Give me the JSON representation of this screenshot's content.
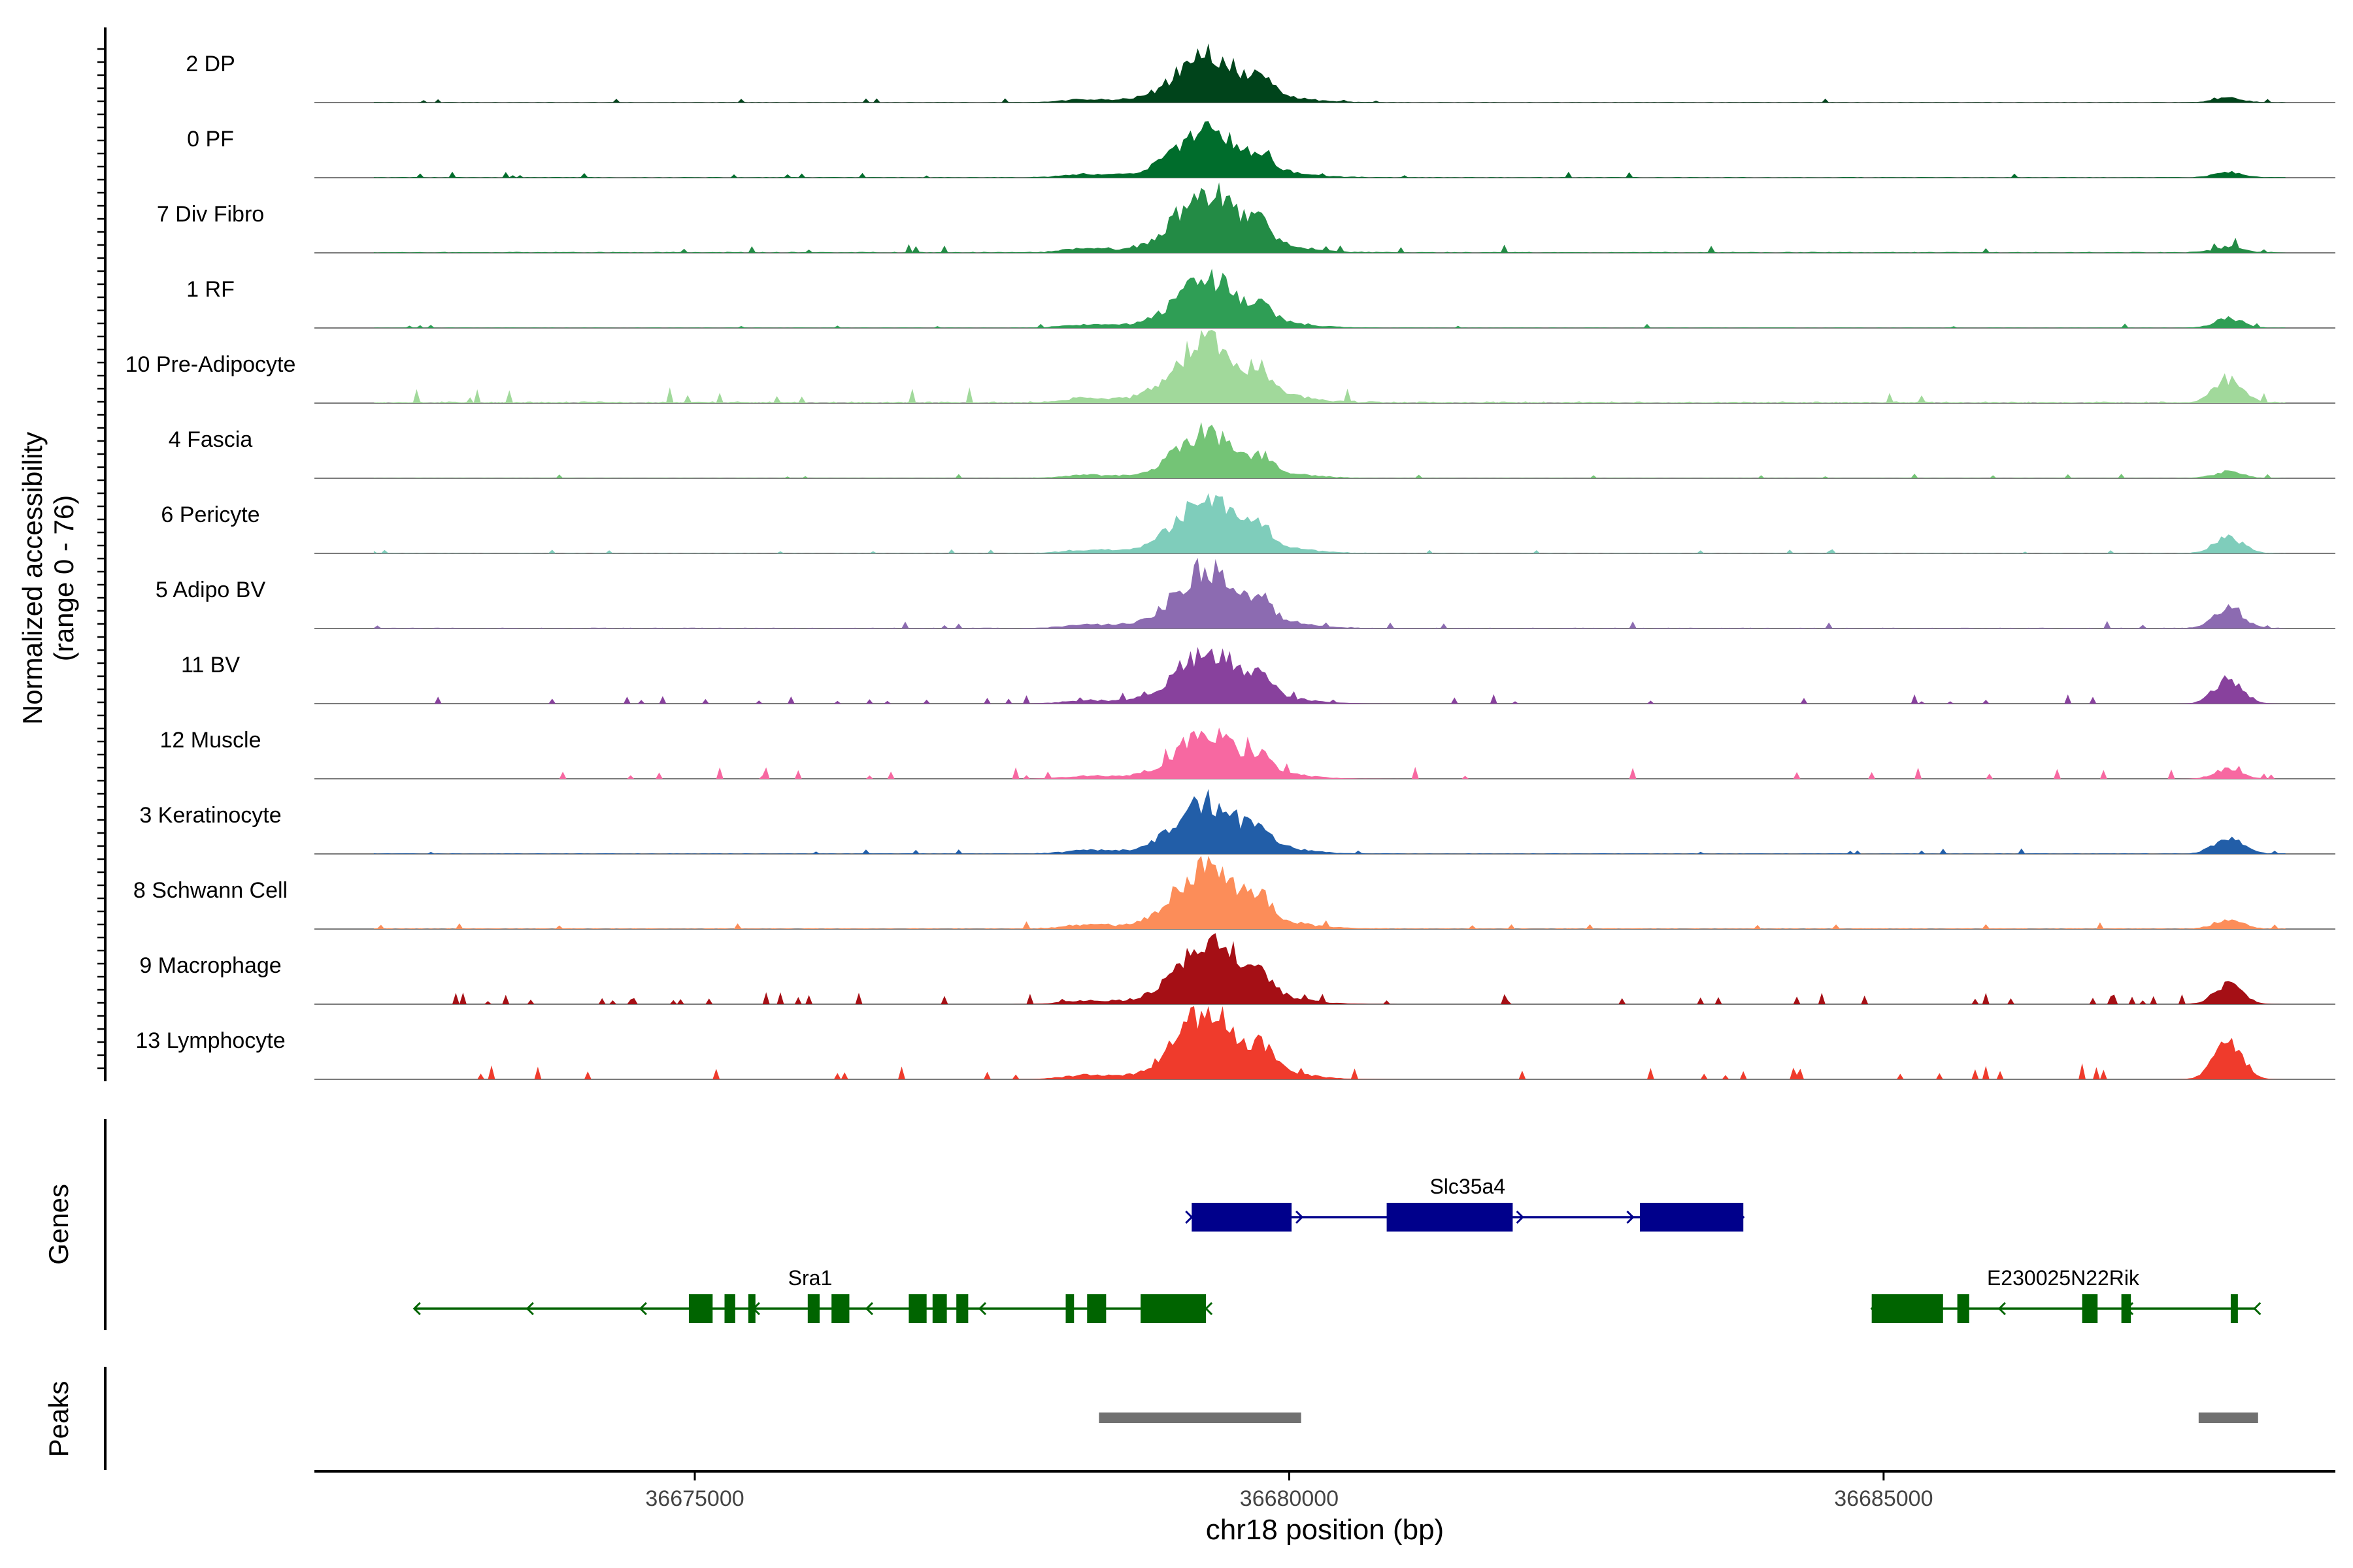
{
  "chart_data": {
    "type": "area",
    "title": "",
    "chromosome": "chr18",
    "xlabel": "chr18 position (bp)",
    "ylabel_line1": "Normalized accessibility",
    "ylabel_line2": "(range 0 - 76)",
    "y_range": [
      0,
      76
    ],
    "x_range": [
      36671800,
      36688800
    ],
    "x_ticks": [
      {
        "value": 36675000,
        "label": "36675000"
      },
      {
        "value": 36680000,
        "label": "36680000"
      },
      {
        "value": 36685000,
        "label": "36685000"
      }
    ],
    "grid": false,
    "tracks": [
      {
        "name": "2 DP",
        "color": "#00441b",
        "main_peak": 52,
        "side_peak": 5,
        "noise": 3,
        "scatter": false
      },
      {
        "name": "0 PF",
        "color": "#006d2c",
        "main_peak": 54,
        "side_peak": 6,
        "noise": 4,
        "scatter": false
      },
      {
        "name": "7 Div Fibro",
        "color": "#238b45",
        "main_peak": 66,
        "side_peak": 6,
        "noise": 6,
        "scatter": false
      },
      {
        "name": "1 RF",
        "color": "#2f9e55",
        "main_peak": 53,
        "side_peak": 10,
        "noise": 3,
        "scatter": false
      },
      {
        "name": "10 Pre-Adipocyte",
        "color": "#a1d99b",
        "main_peak": 70,
        "side_peak": 25,
        "noise": 10,
        "scatter": false
      },
      {
        "name": "4 Fascia",
        "color": "#74c476",
        "main_peak": 50,
        "side_peak": 7,
        "noise": 3,
        "scatter": false
      },
      {
        "name": "6 Pericyte",
        "color": "#7fcdbb",
        "main_peak": 58,
        "side_peak": 17,
        "noise": 3,
        "scatter": false
      },
      {
        "name": "5 Adipo BV",
        "color": "#8c6bb1",
        "main_peak": 65,
        "side_peak": 22,
        "noise": 5,
        "scatter": false
      },
      {
        "name": "11 BV",
        "color": "#88419d",
        "main_peak": 57,
        "side_peak": 27,
        "noise": 8,
        "scatter": true
      },
      {
        "name": "12 Muscle",
        "color": "#f768a1",
        "main_peak": 50,
        "side_peak": 10,
        "noise": 10,
        "scatter": true
      },
      {
        "name": "3 Keratinocyte",
        "color": "#225ea8",
        "main_peak": 56,
        "side_peak": 18,
        "noise": 4,
        "scatter": false
      },
      {
        "name": "8 Schwann Cell",
        "color": "#fc8d59",
        "main_peak": 68,
        "side_peak": 10,
        "noise": 5,
        "scatter": false
      },
      {
        "name": "9 Macrophage",
        "color": "#a50f15",
        "main_peak": 66,
        "side_peak": 20,
        "noise": 10,
        "scatter": true
      },
      {
        "name": "13 Lymphocyte",
        "color": "#ef3b2c",
        "main_peak": 74,
        "side_peak": 42,
        "noise": 13,
        "scatter": true
      }
    ],
    "genes_label": "Genes",
    "genes": [
      {
        "name": "Slc35a4",
        "strand": "+",
        "color": "#00008b",
        "row": 0,
        "start": 36679180,
        "end": 36683820,
        "exons": [
          [
            36679180,
            36680020
          ],
          [
            36680820,
            36681880
          ],
          [
            36682950,
            36683820
          ]
        ]
      },
      {
        "name": "Sra1",
        "strand": "-",
        "color": "#006400",
        "row": 1,
        "start": 36672640,
        "end": 36679300,
        "exons": [
          [
            36674950,
            36675150
          ],
          [
            36675250,
            36675340
          ],
          [
            36675450,
            36675510
          ],
          [
            36675950,
            36676050
          ],
          [
            36676150,
            36676300
          ],
          [
            36676800,
            36676950
          ],
          [
            36677000,
            36677120
          ],
          [
            36677200,
            36677300
          ],
          [
            36678120,
            36678190
          ],
          [
            36678300,
            36678460
          ],
          [
            36678750,
            36679300
          ]
        ]
      },
      {
        "name": "E230025N22Rik",
        "strand": "-",
        "color": "#006400",
        "row": 1,
        "start": 36684900,
        "end": 36688120,
        "exons": [
          [
            36684900,
            36685500
          ],
          [
            36685620,
            36685720
          ],
          [
            36686670,
            36686800
          ],
          [
            36687000,
            36687080
          ],
          [
            36687920,
            36687980
          ]
        ]
      }
    ],
    "peaks_label": "Peaks",
    "peaks": [
      {
        "start": 36678400,
        "end": 36680100
      },
      {
        "start": 36687650,
        "end": 36688150
      }
    ],
    "peaks_color": "#707070"
  }
}
